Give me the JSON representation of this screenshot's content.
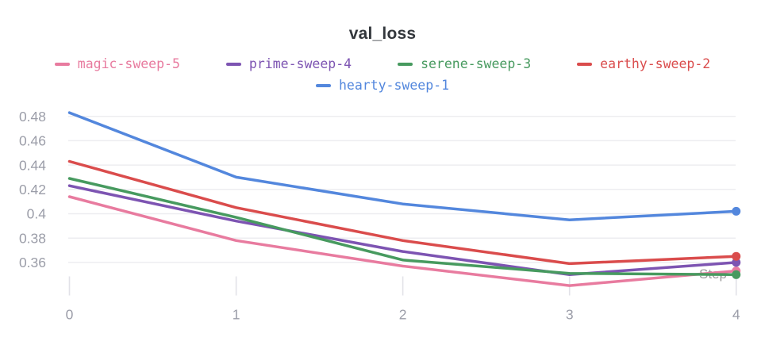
{
  "title": "val_loss",
  "axis": {
    "x_label": "Step",
    "x_tick_labels": [
      "0",
      "1",
      "2",
      "3",
      "4"
    ],
    "y_tick_labels": [
      "0.48",
      "0.46",
      "0.44",
      "0.42",
      "0.4",
      "0.38",
      "0.36"
    ],
    "y_tick_values": [
      0.48,
      0.46,
      0.44,
      0.42,
      0.4,
      0.38,
      0.36
    ]
  },
  "colors": {
    "title": "#33373c",
    "axis_label": "#9b9da8",
    "step_label": "#9b9b9b",
    "gridline": "#ededf0",
    "tick_mark": "#e2e2e8",
    "background": "#ffffff"
  },
  "chart_data": {
    "type": "line",
    "title": "val_loss",
    "xlabel": "Step",
    "ylabel": "",
    "x": [
      0,
      1,
      2,
      3,
      4
    ],
    "xlim": [
      0,
      4
    ],
    "ylim": [
      0.335,
      0.49
    ],
    "grid": "horizontal",
    "legend_position": "top",
    "end_markers": true,
    "series": [
      {
        "name": "magic-sweep-5",
        "color": "#E87B9F",
        "values": [
          0.414,
          0.378,
          0.357,
          0.341,
          0.353
        ]
      },
      {
        "name": "prime-sweep-4",
        "color": "#7D54B2",
        "values": [
          0.423,
          0.394,
          0.369,
          0.35,
          0.36
        ]
      },
      {
        "name": "serene-sweep-3",
        "color": "#479A5F",
        "values": [
          0.429,
          0.397,
          0.362,
          0.351,
          0.35
        ]
      },
      {
        "name": "earthy-sweep-2",
        "color": "#DA4C4C",
        "values": [
          0.443,
          0.405,
          0.378,
          0.359,
          0.365
        ]
      },
      {
        "name": "hearty-sweep-1",
        "color": "#5387DD",
        "values": [
          0.483,
          0.43,
          0.408,
          0.395,
          0.402
        ]
      }
    ]
  }
}
